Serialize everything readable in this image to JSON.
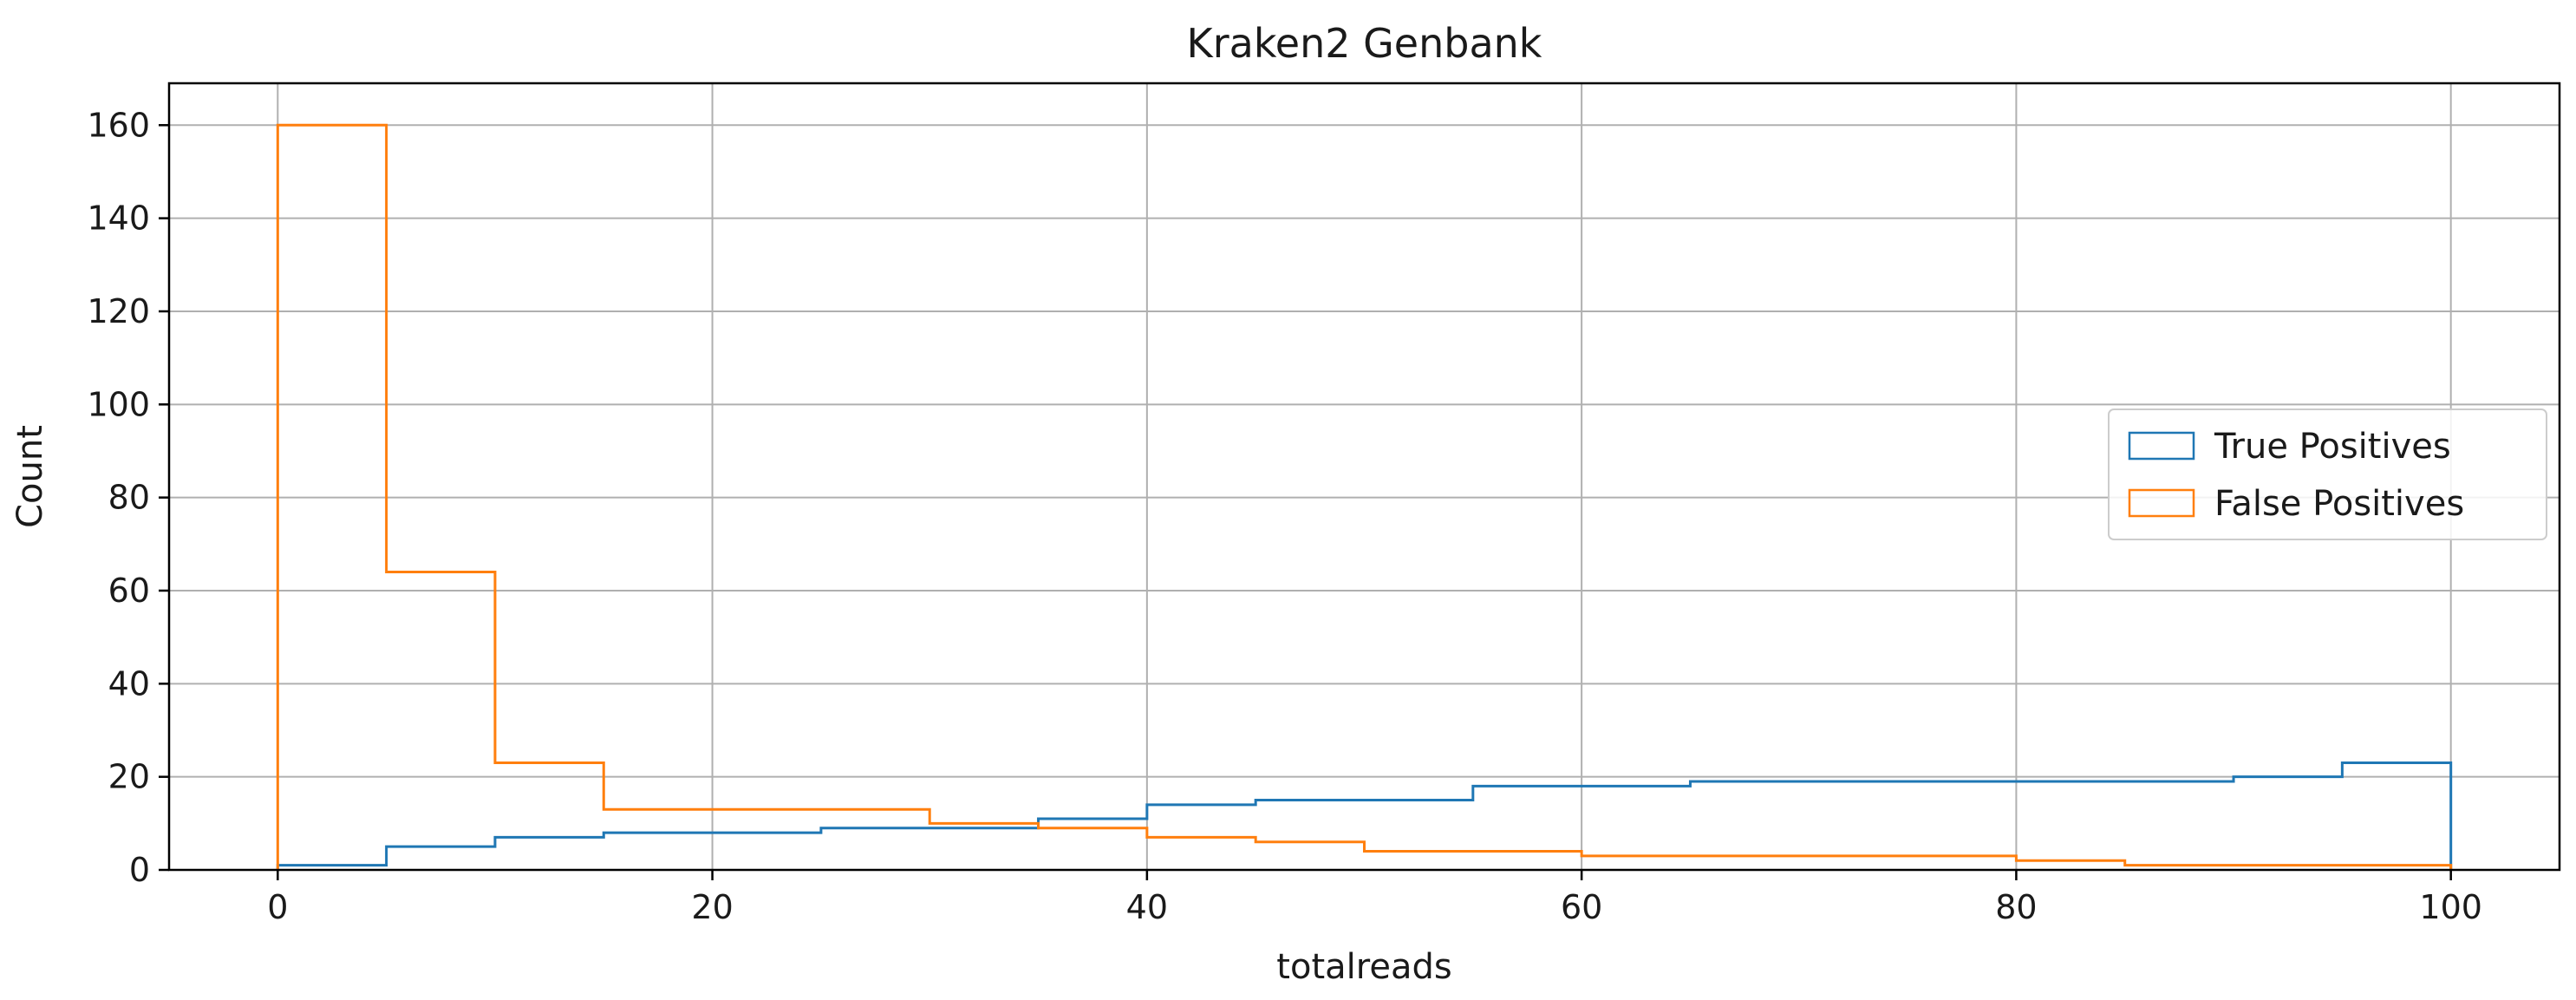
{
  "chart_data": {
    "type": "histogram",
    "title": "Kraken2 Genbank",
    "xlabel": "totalreads",
    "ylabel": "Count",
    "xlim": [
      -5,
      105
    ],
    "ylim": [
      0,
      169
    ],
    "xticks": [
      0,
      20,
      40,
      60,
      80,
      100
    ],
    "yticks": [
      0,
      20,
      40,
      60,
      80,
      100,
      120,
      140,
      160
    ],
    "grid": true,
    "legend_position": "center-right",
    "bin_edges": [
      0,
      5,
      10,
      15,
      20,
      25,
      30,
      35,
      40,
      45,
      50,
      55,
      60,
      65,
      70,
      75,
      80,
      85,
      90,
      95,
      100
    ],
    "series": [
      {
        "name": "True Positives",
        "color": "#1f77b4",
        "values": [
          1,
          5,
          7,
          8,
          8,
          9,
          9,
          11,
          14,
          15,
          15,
          18,
          18,
          19,
          19,
          19,
          19,
          19,
          20,
          23
        ]
      },
      {
        "name": "False Positives",
        "color": "#ff7f0e",
        "values": [
          160,
          64,
          23,
          13,
          13,
          13,
          10,
          9,
          7,
          6,
          4,
          4,
          3,
          3,
          3,
          3,
          2,
          1,
          1,
          1
        ]
      }
    ]
  }
}
